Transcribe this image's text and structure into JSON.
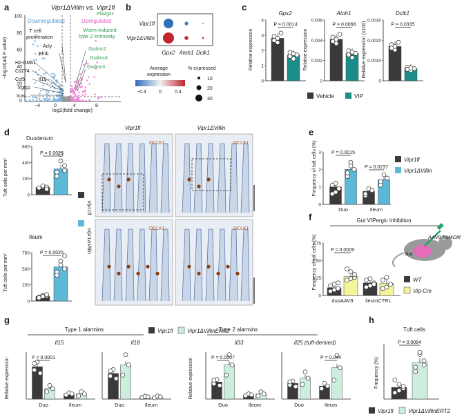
{
  "colors": {
    "dark": "#3a3a3a",
    "teal": "#1a8d8a",
    "lightblue": "#5bb8d6",
    "yellow": "#f6f49a",
    "mint": "#cdeedd",
    "down": "#7fb5e2",
    "up": "#f07ad6",
    "heat_red": "#c0272d",
    "heat_blue": "#2f6fbc"
  },
  "panels": [
    "a",
    "b",
    "c",
    "d",
    "e",
    "f",
    "g",
    "h"
  ],
  "a": {
    "title": "Vipr1ΔVillin vs. Vipr1fl",
    "ylabel": "−log10(adj P value)",
    "xlabel": "log2(fold change)",
    "down_label": "Downregulated",
    "up_label": "Upregulated",
    "tcell_label": "T cell proliferation",
    "worm_label": "Worm-induced type 2 immunity",
    "genes": [
      "Pla2g4c",
      "Acly",
      "Efnb",
      "H2-DMb1",
      "Cd274",
      "Ccl5",
      "Il15",
      "Irgm1",
      "Icos",
      "Gsdmc2",
      "Gsdmc4",
      "Gsdmc3"
    ],
    "xticks": [
      "−4",
      "0",
      "4",
      "8"
    ],
    "yticks": [
      "0",
      "20",
      "40",
      "60",
      "80",
      "100"
    ]
  },
  "b": {
    "rows": [
      "Vipr1fl",
      "Vipr1ΔVillin"
    ],
    "cols": [
      "Gpx2",
      "Atoh1",
      "Dclk1"
    ],
    "legend_title": "Average expression",
    "legend_ticks": [
      "−0.4",
      "0",
      "0.4"
    ],
    "size_title": "% expressed",
    "sizes": [
      "10",
      "20",
      "30"
    ]
  },
  "c": {
    "ylabel": "Relative expression",
    "ylabel2": "Relative expression (x100)",
    "legend": [
      "Vehicle",
      "VIP"
    ],
    "plots": [
      {
        "gene": "Gpx2",
        "p": "P = 0.0014",
        "yticks": [
          "0",
          "1",
          "2",
          "3",
          "4"
        ]
      },
      {
        "gene": "Atoh1",
        "p": "P = 0.0068",
        "yticks": [
          "0",
          "0.002",
          "0.004",
          "0.006"
        ]
      },
      {
        "gene": "Dclk1",
        "p": "P = 0.0335",
        "yticks": [
          "0",
          "0.0010",
          "0.0020",
          "0.0030"
        ]
      }
    ]
  },
  "d": {
    "duo_title": "Duodenum",
    "ileum_title": "Ileum",
    "p_duo": "P = 0.0025",
    "p_ileum": "P = 0.0025",
    "ylabel": "Tuft cells per mm²",
    "duo_yticks": [
      "0",
      "200",
      "400",
      "600"
    ],
    "ileum_yticks": [
      "0",
      "250",
      "500",
      "750"
    ],
    "legend": [
      "Vipr1fl",
      "Vipr1ΔVillin"
    ],
    "img_titles": [
      "Vipr1fl",
      "Vipr1ΔVillin"
    ],
    "stain": "DCLK1"
  },
  "e": {
    "ylabel": "Frequency of tuft cells (%)",
    "p1": "P = 0.0015",
    "p2": "P = 0.0237",
    "x": [
      "Duo",
      "Ileum"
    ],
    "yticks": [
      "0",
      "1",
      "2",
      "3"
    ],
    "legend": [
      "Vipr1fl",
      "Vipr1ΔVillin"
    ]
  },
  "f": {
    "title": "Gut VIPergic inhibition",
    "p": "P = 0.0009",
    "ylabel": "Frequency of tuft cells (%)",
    "yticks": [
      "0",
      "1.25",
      "2.50",
      "3.75"
    ],
    "x": [
      "duoAAV9",
      "ileumCTRL"
    ],
    "virus": "AAV9-hM4Difl",
    "organ": "duo",
    "legend": [
      "WT",
      "Vip-Cre"
    ]
  },
  "g": {
    "type1": "Type 1 alarmins",
    "type2": "Type 2 alarmins",
    "legend": [
      "Vipr1fl",
      "Vipr1ΔVillinERT2"
    ],
    "ylabel": "Relative expression",
    "plots": [
      {
        "gene": "Il15",
        "p": "P < 0.0001",
        "x": [
          "Duo",
          "Ileum"
        ]
      },
      {
        "gene": "Il18",
        "p": "",
        "x": [
          "Duo",
          "Ileum"
        ]
      },
      {
        "gene": "Il33",
        "p": "P = 0.0007",
        "x": [
          "Duo",
          "Ileum"
        ]
      },
      {
        "gene": "Il25 (tuft-derived)",
        "p": "P = 0.044",
        "x": [
          "Duo",
          "Ileum"
        ]
      }
    ]
  },
  "h": {
    "title": "Tuft cells",
    "p": "P = 0.0084",
    "ylabel": "Frequency (%)",
    "legend": [
      "Vipr1fl",
      "Vipr1ΔVillinERT2"
    ]
  }
}
